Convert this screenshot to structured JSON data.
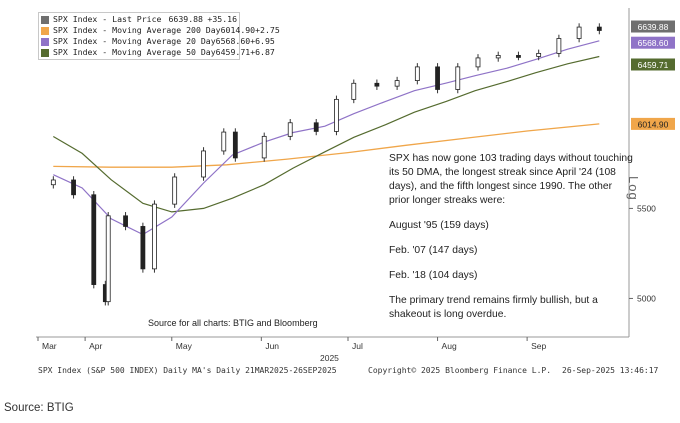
{
  "legend": {
    "items": [
      {
        "name": "SPX Index - Last Price",
        "value": "6639.88",
        "change": "+35.16",
        "color": "#6f6f6f"
      },
      {
        "name": "SPX Index - Moving Average 200 Day",
        "value": "6014.90",
        "change": "+2.75",
        "color": "#f0a64a"
      },
      {
        "name": "SPX Index - Moving Average 20 Day",
        "value": "6568.60",
        "change": "+6.95",
        "color": "#8f73c7"
      },
      {
        "name": "SPX Index - Moving Average 50 Day",
        "value": "6459.71",
        "change": "+6.87",
        "color": "#556b2f"
      }
    ]
  },
  "annotation": {
    "paragraph1": "SPX has now gone 103 trading days without touching its 50 DMA, the longest streak since April '24 (108 days), and the fifth longest since 1990. The other prior longer streaks were:",
    "streak1": "August '95 (159 days)",
    "streak2": "Feb. '07 (147 days)",
    "streak3": "Feb. '18 (104 days)",
    "paragraph2": "The primary trend remains firmly bullish, but a shakeout is long overdue."
  },
  "source_note": "Source for all charts: BTIG and Bloomberg",
  "footer": {
    "left": "SPX Index (S&P 500 INDEX) Daily MA's  Daily 21MAR2025-26SEP2025",
    "middle": "Copyright© 2025 Bloomberg Finance L.P.",
    "right": "26-Sep-2025 13:46:17"
  },
  "caption": "Source: BTIG",
  "chart_data": {
    "type": "line",
    "title": "",
    "xlabel": "",
    "ylabel": "Log",
    "log_scale": true,
    "ylim": [
      4800,
      6800
    ],
    "year_label": "2025",
    "x_ticks": [
      "Mar",
      "Apr",
      "May",
      "Jun",
      "Jul",
      "Aug",
      "Sep"
    ],
    "y_ticks": [
      "5500",
      "5000"
    ],
    "price_labels": [
      {
        "text": "6639.88",
        "bg": "#6f6f6f",
        "fg": "#ffffff"
      },
      {
        "text": "6568.60",
        "bg": "#8f73c7",
        "fg": "#ffffff"
      },
      {
        "text": "6459.71",
        "bg": "#556b2f",
        "fg": "#ffffff"
      },
      {
        "text": "6014.90",
        "bg": "#f0a64a",
        "fg": "#222222"
      }
    ],
    "series": [
      {
        "name": "SPX Index - Last Price",
        "color": "#6f6f6f",
        "style": "candlestick",
        "x": [
          "2025-03-21",
          "2025-03-28",
          "2025-04-04",
          "2025-04-08",
          "2025-04-09",
          "2025-04-15",
          "2025-04-21",
          "2025-04-25",
          "2025-05-02",
          "2025-05-12",
          "2025-05-19",
          "2025-05-23",
          "2025-06-02",
          "2025-06-11",
          "2025-06-20",
          "2025-06-27",
          "2025-07-03",
          "2025-07-11",
          "2025-07-18",
          "2025-07-25",
          "2025-08-01",
          "2025-08-08",
          "2025-08-15",
          "2025-08-22",
          "2025-08-29",
          "2025-09-05",
          "2025-09-12",
          "2025-09-19",
          "2025-09-26"
        ],
        "values": [
          5668,
          5580,
          5074,
          4983,
          5457,
          5396,
          5159,
          5525,
          5686,
          5845,
          5963,
          5802,
          5936,
          6022,
          5967,
          6173,
          6279,
          6260,
          6297,
          6389,
          6238,
          6389,
          6450,
          6467,
          6460,
          6481,
          6584,
          6664,
          6640
        ]
      },
      {
        "name": "SPX Index - Moving Average 200 Day",
        "color": "#f0a64a",
        "x": [
          "2025-03-21",
          "2025-04-10",
          "2025-05-01",
          "2025-05-20",
          "2025-06-10",
          "2025-07-01",
          "2025-07-21",
          "2025-08-11",
          "2025-09-01",
          "2025-09-26"
        ],
        "values": [
          5750,
          5745,
          5745,
          5760,
          5795,
          5835,
          5880,
          5925,
          5970,
          6015
        ]
      },
      {
        "name": "SPX Index - Moving Average 50 Day",
        "color": "#556b2f",
        "x": [
          "2025-03-21",
          "2025-03-31",
          "2025-04-10",
          "2025-04-21",
          "2025-05-01",
          "2025-05-12",
          "2025-05-22",
          "2025-06-02",
          "2025-06-12",
          "2025-06-23",
          "2025-07-03",
          "2025-07-14",
          "2025-07-24",
          "2025-08-04",
          "2025-08-14",
          "2025-08-25",
          "2025-09-04",
          "2025-09-15",
          "2025-09-26"
        ],
        "values": [
          5935,
          5830,
          5670,
          5530,
          5480,
          5500,
          5560,
          5640,
          5740,
          5840,
          5930,
          6010,
          6090,
          6160,
          6230,
          6290,
          6350,
          6410,
          6460
        ]
      },
      {
        "name": "SPX Index - Moving Average 20 Day",
        "color": "#8f73c7",
        "x": [
          "2025-03-21",
          "2025-03-31",
          "2025-04-10",
          "2025-04-21",
          "2025-05-01",
          "2025-05-12",
          "2025-05-22",
          "2025-06-02",
          "2025-06-12",
          "2025-06-23",
          "2025-07-03",
          "2025-07-14",
          "2025-07-24",
          "2025-08-04",
          "2025-08-14",
          "2025-08-25",
          "2025-09-04",
          "2025-09-15",
          "2025-09-26"
        ],
        "values": [
          5700,
          5620,
          5440,
          5350,
          5450,
          5650,
          5820,
          5900,
          5960,
          6000,
          6080,
          6160,
          6230,
          6280,
          6330,
          6380,
          6440,
          6510,
          6568
        ]
      }
    ]
  }
}
